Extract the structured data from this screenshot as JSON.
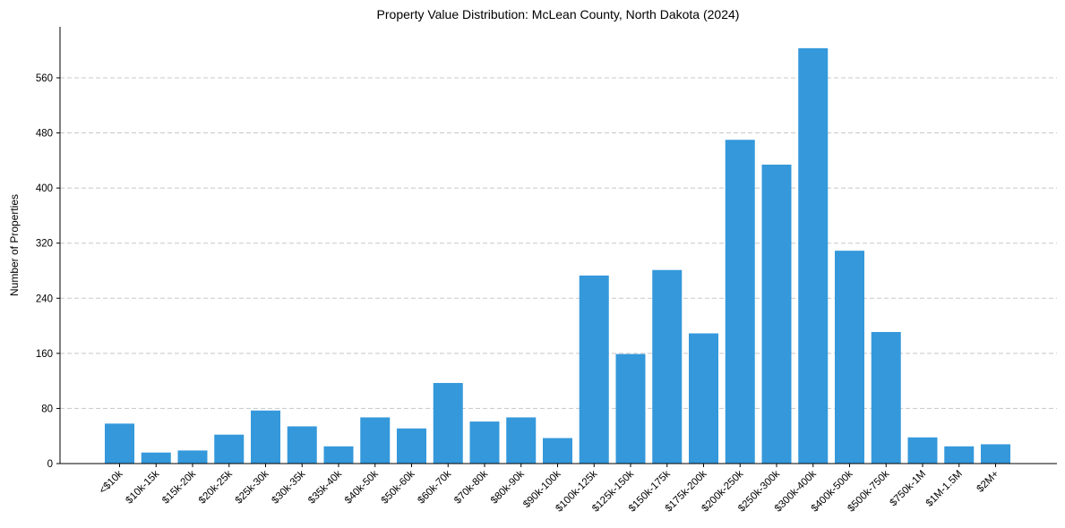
{
  "chart_data": {
    "type": "bar",
    "title": "Property Value Distribution: McLean County, North Dakota (2024)",
    "xlabel": "",
    "ylabel": "Number of Properties",
    "ylim": [
      0,
      634
    ],
    "yticks": [
      0,
      80,
      160,
      240,
      320,
      400,
      480,
      560
    ],
    "grid": "y-dashed",
    "color": "#3498db",
    "categories": [
      "<$10k",
      "$10k-15k",
      "$15k-20k",
      "$20k-25k",
      "$25k-30k",
      "$30k-35k",
      "$35k-40k",
      "$40k-50k",
      "$50k-60k",
      "$60k-70k",
      "$70k-80k",
      "$80k-90k",
      "$90k-100k",
      "$100k-125k",
      "$125k-150k",
      "$150k-175k",
      "$175k-200k",
      "$200k-250k",
      "$250k-300k",
      "$300k-400k",
      "$400k-500k",
      "$500k-750k",
      "$750k-1M",
      "$1M-1.5M",
      "$2M+"
    ],
    "values": [
      58,
      16,
      19,
      42,
      77,
      54,
      25,
      67,
      51,
      117,
      61,
      67,
      37,
      273,
      159,
      281,
      189,
      470,
      434,
      603,
      309,
      191,
      38,
      25,
      28
    ]
  }
}
